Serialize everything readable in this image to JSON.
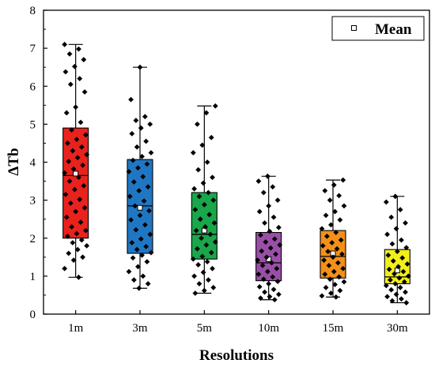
{
  "chart_data": {
    "type": "box",
    "xlabel": "Resolutions",
    "ylabel": "ΔTb",
    "ylim": [
      0,
      8
    ],
    "yticks": [
      0,
      1,
      2,
      3,
      4,
      5,
      6,
      7,
      8
    ],
    "grid": false,
    "legend": {
      "position": "top-right",
      "entries": [
        "Mean"
      ]
    },
    "categories": [
      "1m",
      "3m",
      "5m",
      "10m",
      "15m",
      "30m"
    ],
    "colors": [
      "#e8221d",
      "#1f77c4",
      "#1aa64a",
      "#9a4fa6",
      "#f39019",
      "#f2ee1b"
    ],
    "boxes": [
      {
        "category": "1m",
        "whisker_low": 0.97,
        "q1": 2.0,
        "median": 3.65,
        "mean": 3.7,
        "q3": 4.9,
        "whisker_high": 7.1
      },
      {
        "category": "3m",
        "whisker_low": 0.68,
        "q1": 1.6,
        "median": 2.85,
        "mean": 2.8,
        "q3": 4.07,
        "whisker_high": 6.5
      },
      {
        "category": "5m",
        "whisker_low": 0.55,
        "q1": 1.45,
        "median": 2.1,
        "mean": 2.2,
        "q3": 3.2,
        "whisker_high": 5.48
      },
      {
        "category": "10m",
        "whisker_low": 0.38,
        "q1": 0.88,
        "median": 1.35,
        "mean": 1.45,
        "q3": 2.15,
        "whisker_high": 3.63
      },
      {
        "category": "15m",
        "whisker_low": 0.45,
        "q1": 0.95,
        "median": 1.52,
        "mean": 1.6,
        "q3": 2.2,
        "whisker_high": 3.53
      },
      {
        "category": "30m",
        "whisker_low": 0.3,
        "q1": 0.8,
        "median": 0.98,
        "mean": 1.15,
        "q3": 1.7,
        "whisker_high": 3.1
      }
    ],
    "points": [
      [
        7.1,
        6.98,
        6.85,
        6.7,
        6.52,
        6.38,
        6.2,
        6.05,
        5.85,
        5.45,
        5.3,
        5.05,
        4.85,
        4.72,
        4.6,
        4.5,
        4.4,
        4.3,
        4.2,
        4.12,
        4.02,
        3.92,
        3.82,
        3.72,
        3.6,
        3.5,
        3.38,
        3.28,
        3.15,
        3.02,
        2.92,
        2.8,
        2.7,
        2.55,
        2.42,
        2.3,
        2.2,
        2.12,
        2.05,
        1.95,
        1.88,
        1.8,
        1.7,
        1.6,
        1.5,
        1.42,
        1.2,
        0.97
      ],
      [
        6.5,
        5.65,
        5.2,
        5.1,
        5.0,
        4.9,
        4.75,
        4.55,
        4.4,
        4.25,
        4.15,
        4.05,
        3.95,
        3.85,
        3.75,
        3.62,
        3.48,
        3.35,
        3.25,
        3.1,
        2.98,
        2.85,
        2.72,
        2.6,
        2.48,
        2.35,
        2.22,
        2.1,
        1.98,
        1.88,
        1.78,
        1.7,
        1.62,
        1.55,
        1.48,
        1.38,
        1.25,
        1.12,
        1.0,
        0.9,
        0.8,
        0.68
      ],
      [
        5.48,
        5.3,
        5.0,
        4.65,
        4.45,
        4.25,
        4.0,
        3.8,
        3.6,
        3.45,
        3.3,
        3.2,
        3.1,
        3.0,
        2.88,
        2.75,
        2.62,
        2.5,
        2.4,
        2.3,
        2.2,
        2.1,
        2.0,
        1.9,
        1.82,
        1.72,
        1.62,
        1.52,
        1.45,
        1.38,
        1.3,
        1.2,
        1.1,
        1.0,
        0.9,
        0.8,
        0.7,
        0.62,
        0.55
      ],
      [
        3.63,
        3.5,
        3.35,
        3.2,
        3.0,
        2.85,
        2.7,
        2.55,
        2.4,
        2.28,
        2.18,
        2.08,
        1.98,
        1.9,
        1.82,
        1.74,
        1.66,
        1.58,
        1.5,
        1.42,
        1.35,
        1.28,
        1.2,
        1.12,
        1.05,
        0.98,
        0.92,
        0.86,
        0.8,
        0.72,
        0.65,
        0.58,
        0.52,
        0.46,
        0.42,
        0.38
      ],
      [
        3.53,
        3.4,
        3.25,
        3.12,
        3.0,
        2.85,
        2.7,
        2.6,
        2.48,
        2.35,
        2.25,
        2.15,
        2.05,
        1.95,
        1.88,
        1.8,
        1.72,
        1.65,
        1.58,
        1.5,
        1.42,
        1.35,
        1.28,
        1.2,
        1.12,
        1.05,
        0.98,
        0.92,
        0.85,
        0.78,
        0.7,
        0.62,
        0.55,
        0.48,
        0.45
      ],
      [
        3.1,
        2.95,
        2.75,
        2.55,
        2.4,
        2.25,
        2.1,
        1.95,
        1.85,
        1.75,
        1.65,
        1.55,
        1.48,
        1.4,
        1.32,
        1.25,
        1.18,
        1.12,
        1.06,
        1.0,
        0.95,
        0.9,
        0.85,
        0.8,
        0.75,
        0.7,
        0.64,
        0.58,
        0.52,
        0.46,
        0.4,
        0.35,
        0.3
      ]
    ]
  }
}
